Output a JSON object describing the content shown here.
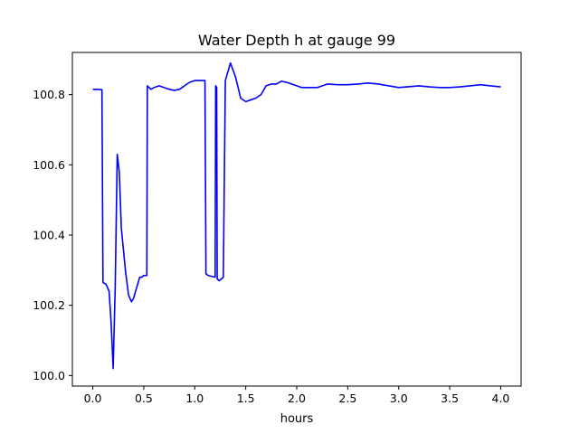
{
  "chart_data": {
    "type": "line",
    "title": "Water Depth h at gauge 99",
    "xlabel": "hours",
    "ylabel": "",
    "xlim": [
      -0.2,
      4.2
    ],
    "ylim": [
      99.97,
      100.92
    ],
    "xticks": [
      0.0,
      0.5,
      1.0,
      1.5,
      2.0,
      2.5,
      3.0,
      3.5,
      4.0
    ],
    "xtick_labels": [
      "0.0",
      "0.5",
      "1.0",
      "1.5",
      "2.0",
      "2.5",
      "3.0",
      "3.5",
      "4.0"
    ],
    "yticks": [
      100.0,
      100.2,
      100.4,
      100.6,
      100.8
    ],
    "ytick_labels": [
      "100.0",
      "100.2",
      "100.4",
      "100.6",
      "100.8"
    ],
    "grid": false,
    "legend": "none",
    "series": [
      {
        "color": "#0000ff",
        "x": [
          0.0,
          0.05,
          0.09,
          0.1,
          0.13,
          0.16,
          0.18,
          0.2,
          0.22,
          0.24,
          0.26,
          0.28,
          0.3,
          0.32,
          0.35,
          0.38,
          0.4,
          0.42,
          0.44,
          0.46,
          0.48,
          0.5,
          0.53,
          0.535,
          0.57,
          0.6,
          0.65,
          0.7,
          0.75,
          0.8,
          0.85,
          0.9,
          0.95,
          1.0,
          1.05,
          1.1,
          1.11,
          1.13,
          1.2,
          1.205,
          1.215,
          1.22,
          1.24,
          1.26,
          1.28,
          1.3,
          1.35,
          1.4,
          1.45,
          1.5,
          1.55,
          1.6,
          1.65,
          1.7,
          1.75,
          1.8,
          1.85,
          1.9,
          2.0,
          2.05,
          2.1,
          2.2,
          2.3,
          2.4,
          2.5,
          2.6,
          2.7,
          2.8,
          3.0,
          3.2,
          3.3,
          3.4,
          3.5,
          3.6,
          3.7,
          3.8,
          3.9,
          4.0
        ],
        "y": [
          100.815,
          100.815,
          100.814,
          100.265,
          100.26,
          100.24,
          100.15,
          100.02,
          100.25,
          100.63,
          100.58,
          100.42,
          100.36,
          100.3,
          100.23,
          100.21,
          100.22,
          100.24,
          100.26,
          100.28,
          100.28,
          100.285,
          100.285,
          100.825,
          100.815,
          100.82,
          100.825,
          100.82,
          100.815,
          100.812,
          100.815,
          100.825,
          100.835,
          100.84,
          100.84,
          100.84,
          100.29,
          100.285,
          100.28,
          100.825,
          100.82,
          100.275,
          100.27,
          100.275,
          100.28,
          100.84,
          100.89,
          100.85,
          100.79,
          100.78,
          100.785,
          100.79,
          100.8,
          100.825,
          100.83,
          100.83,
          100.838,
          100.835,
          100.825,
          100.82,
          100.82,
          100.82,
          100.83,
          100.828,
          100.828,
          100.83,
          100.833,
          100.83,
          100.82,
          100.825,
          100.822,
          100.82,
          100.82,
          100.822,
          100.825,
          100.828,
          100.825,
          100.822
        ]
      }
    ]
  }
}
